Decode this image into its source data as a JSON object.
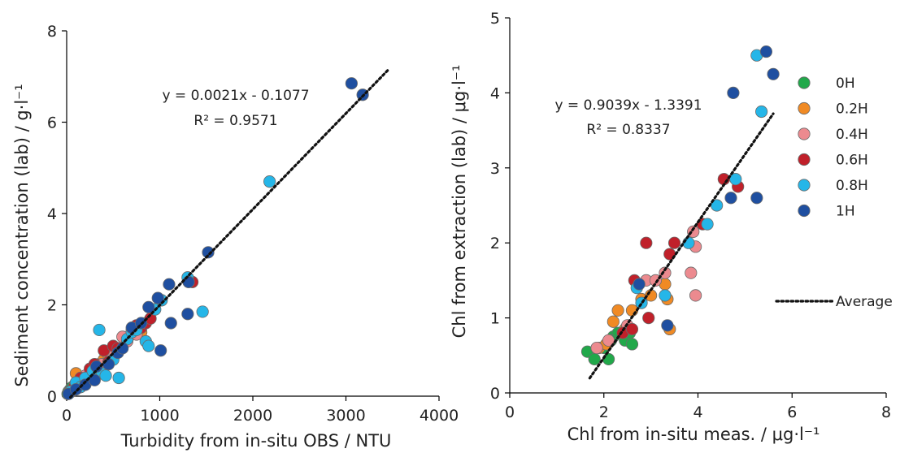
{
  "chart_data": [
    {
      "type": "scatter",
      "xlabel": "Turbidity from in-situ OBS / NTU",
      "ylabel": "Sediment concentration (lab) / g·l⁻¹",
      "xlim": [
        0,
        4000
      ],
      "ylim": [
        0,
        8
      ],
      "xticks": [
        0,
        1000,
        2000,
        3000,
        4000
      ],
      "yticks": [
        0,
        2,
        4,
        6,
        8
      ],
      "grid": false,
      "equation": "y = 0.0021x - 0.1077",
      "r2": "R² = 0.9571",
      "trend": {
        "slope": 0.0021,
        "intercept": -0.1077,
        "x_range": [
          40,
          3450
        ]
      },
      "colors": {
        "0H": "#21a84a",
        "0.2H": "#f08a24",
        "0.4H": "#ec8a8f",
        "0.6H": "#c0202a",
        "0.8H": "#25b6e8",
        "1H": "#1f4fa0"
      },
      "series": [
        {
          "key": "0H",
          "points": [
            [
              10,
              0.05
            ],
            [
              20,
              0.1
            ],
            [
              40,
              0.15
            ],
            [
              60,
              0.2
            ],
            [
              90,
              0.25
            ],
            [
              120,
              0.3
            ],
            [
              150,
              0.35
            ],
            [
              180,
              0.3
            ],
            [
              200,
              0.4
            ],
            [
              250,
              0.45
            ],
            [
              30,
              0.08
            ]
          ]
        },
        {
          "key": "0.2H",
          "points": [
            [
              30,
              0.1
            ],
            [
              60,
              0.15
            ],
            [
              100,
              0.5
            ],
            [
              150,
              0.3
            ],
            [
              200,
              0.35
            ],
            [
              250,
              0.4
            ],
            [
              300,
              0.6
            ],
            [
              350,
              0.7
            ],
            [
              400,
              0.8
            ],
            [
              450,
              0.9
            ],
            [
              500,
              0.85
            ],
            [
              550,
              1.0
            ],
            [
              700,
              1.35
            ],
            [
              800,
              1.4
            ]
          ]
        },
        {
          "key": "0.4H",
          "points": [
            [
              50,
              0.1
            ],
            [
              120,
              0.25
            ],
            [
              200,
              0.45
            ],
            [
              300,
              0.55
            ],
            [
              380,
              0.7
            ],
            [
              480,
              0.9
            ],
            [
              600,
              1.3
            ],
            [
              650,
              1.2
            ],
            [
              750,
              1.35
            ]
          ]
        },
        {
          "key": "0.6H",
          "points": [
            [
              80,
              0.2
            ],
            [
              150,
              0.4
            ],
            [
              250,
              0.6
            ],
            [
              300,
              0.7
            ],
            [
              400,
              1.0
            ],
            [
              450,
              0.75
            ],
            [
              500,
              1.1
            ],
            [
              550,
              1.05
            ],
            [
              700,
              1.45
            ],
            [
              750,
              1.55
            ],
            [
              800,
              1.5
            ],
            [
              850,
              1.6
            ],
            [
              900,
              1.7
            ],
            [
              1000,
              2.1
            ],
            [
              1350,
              2.5
            ]
          ]
        },
        {
          "key": "0.8H",
          "points": [
            [
              40,
              0.1
            ],
            [
              100,
              0.3
            ],
            [
              150,
              0.2
            ],
            [
              200,
              0.4
            ],
            [
              280,
              0.55
            ],
            [
              350,
              1.45
            ],
            [
              380,
              0.5
            ],
            [
              420,
              0.45
            ],
            [
              500,
              0.8
            ],
            [
              560,
              0.4
            ],
            [
              650,
              1.25
            ],
            [
              700,
              1.4
            ],
            [
              750,
              1.45
            ],
            [
              850,
              1.2
            ],
            [
              880,
              1.1
            ],
            [
              950,
              1.9
            ],
            [
              1020,
              2.1
            ],
            [
              1300,
              2.6
            ],
            [
              1460,
              1.85
            ],
            [
              2180,
              4.7
            ]
          ]
        },
        {
          "key": "1H",
          "points": [
            [
              20,
              0.05
            ],
            [
              100,
              0.15
            ],
            [
              200,
              0.25
            ],
            [
              300,
              0.35
            ],
            [
              320,
              0.65
            ],
            [
              450,
              0.7
            ],
            [
              550,
              0.95
            ],
            [
              600,
              1.05
            ],
            [
              700,
              1.5
            ],
            [
              800,
              1.6
            ],
            [
              880,
              1.95
            ],
            [
              980,
              2.15
            ],
            [
              1010,
              1.0
            ],
            [
              1100,
              2.45
            ],
            [
              1120,
              1.6
            ],
            [
              1300,
              1.8
            ],
            [
              1310,
              2.5
            ],
            [
              1520,
              3.15
            ],
            [
              3060,
              6.85
            ],
            [
              3180,
              6.6
            ]
          ]
        }
      ]
    },
    {
      "type": "scatter",
      "xlabel": "Chl from in-situ meas. / μg·l⁻¹",
      "ylabel": "Chl from extraction (lab) / μg·l⁻¹",
      "xlim": [
        0,
        8
      ],
      "ylim": [
        0,
        5
      ],
      "xticks": [
        0,
        2,
        4,
        6,
        8
      ],
      "yticks": [
        0,
        1,
        2,
        3,
        4,
        5
      ],
      "grid": false,
      "equation": "y = 0.9039x - 1.3391",
      "r2": "R² = 0.8337",
      "trend": {
        "slope": 0.9039,
        "intercept": -1.3391,
        "x_range": [
          1.7,
          5.6
        ]
      },
      "legend": {
        "position": "right",
        "entries": [
          "0H",
          "0.2H",
          "0.4H",
          "0.6H",
          "0.8H",
          "1H"
        ],
        "trend_label": "Average"
      },
      "colors": {
        "0H": "#21a84a",
        "0.2H": "#f08a24",
        "0.4H": "#ec8a8f",
        "0.6H": "#c0202a",
        "0.8H": "#25b6e8",
        "1H": "#1f4fa0"
      },
      "series": [
        {
          "key": "0H",
          "points": [
            [
              1.65,
              0.55
            ],
            [
              1.8,
              0.45
            ],
            [
              2.0,
              0.6
            ],
            [
              2.1,
              0.45
            ],
            [
              2.2,
              0.75
            ],
            [
              2.3,
              0.8
            ],
            [
              2.45,
              0.7
            ],
            [
              2.55,
              0.8
            ],
            [
              2.6,
              0.65
            ],
            [
              2.15,
              0.7
            ]
          ]
        },
        {
          "key": "0.2H",
          "points": [
            [
              1.9,
              0.6
            ],
            [
              2.2,
              0.95
            ],
            [
              2.3,
              1.1
            ],
            [
              2.45,
              0.85
            ],
            [
              2.6,
              1.1
            ],
            [
              2.8,
              1.25
            ],
            [
              3.0,
              1.3
            ],
            [
              3.3,
              1.45
            ],
            [
              3.35,
              1.25
            ],
            [
              3.4,
              0.85
            ],
            [
              2.05,
              0.65
            ]
          ]
        },
        {
          "key": "0.4H",
          "points": [
            [
              1.85,
              0.6
            ],
            [
              2.1,
              0.7
            ],
            [
              2.5,
              0.9
            ],
            [
              2.9,
              1.5
            ],
            [
              3.1,
              1.5
            ],
            [
              3.3,
              1.6
            ],
            [
              3.85,
              1.6
            ],
            [
              3.9,
              2.15
            ],
            [
              3.95,
              1.95
            ],
            [
              3.95,
              1.3
            ]
          ]
        },
        {
          "key": "0.6H",
          "points": [
            [
              2.4,
              0.8
            ],
            [
              2.6,
              0.85
            ],
            [
              2.65,
              1.5
            ],
            [
              2.9,
              2.0
            ],
            [
              2.95,
              1.0
            ],
            [
              3.4,
              1.85
            ],
            [
              3.5,
              2.0
            ],
            [
              4.1,
              2.25
            ],
            [
              4.55,
              2.85
            ],
            [
              4.85,
              2.75
            ]
          ]
        },
        {
          "key": "0.8H",
          "points": [
            [
              2.7,
              1.4
            ],
            [
              2.8,
              1.2
            ],
            [
              3.3,
              1.3
            ],
            [
              3.8,
              2.0
            ],
            [
              4.2,
              2.25
            ],
            [
              4.4,
              2.5
            ],
            [
              4.8,
              2.85
            ],
            [
              5.25,
              4.5
            ],
            [
              5.35,
              3.75
            ]
          ]
        },
        {
          "key": "1H",
          "points": [
            [
              2.75,
              1.45
            ],
            [
              3.35,
              0.9
            ],
            [
              4.7,
              2.6
            ],
            [
              4.75,
              4.0
            ],
            [
              5.25,
              2.6
            ],
            [
              5.45,
              4.55
            ],
            [
              5.6,
              4.25
            ]
          ]
        }
      ]
    }
  ]
}
